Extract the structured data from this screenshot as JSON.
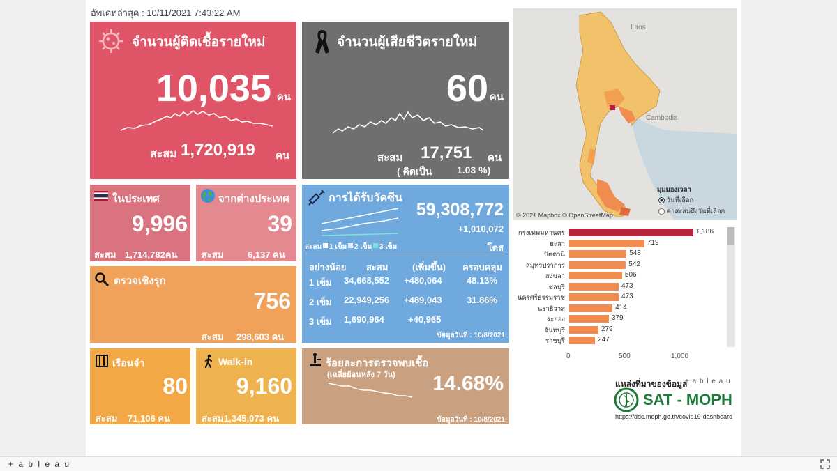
{
  "last_updated": "อัพเดทล่าสุด : 10/11/2021 7:43:22 AM",
  "new_cases": {
    "title": "จำนวนผู้ติดเชื้อรายใหม่",
    "value": "10,035",
    "unit": "คน",
    "cum_label": "สะสม",
    "cum_value": "1,720,919",
    "cum_unit": "คน"
  },
  "new_deaths": {
    "title": "จำนวนผู้เสียชีวิตรายใหม่",
    "value": "60",
    "unit": "คน",
    "cum_label": "สะสม",
    "cum_value": "17,751",
    "cum_unit": "คน",
    "pct_label": "( คิดเป็น",
    "pct_value": "1.03 %)"
  },
  "domestic": {
    "title": "ในประเทศ",
    "value": "9,996",
    "cum_label": "สะสม",
    "cum_value": "1,714,782คน"
  },
  "overseas": {
    "title": "จากต่างประเทศ",
    "value": "39",
    "cum_label": "สะสม",
    "cum_value": "6,137 คน"
  },
  "vaccine": {
    "title": "การได้รับวัคซีน",
    "total": "59,308,772",
    "increase": "+1,010,072",
    "unit": "โดส",
    "legend_prefix": "สะสม",
    "legend": [
      "1 เข็ม",
      "2 เข็ม",
      "3 เข็ม"
    ],
    "headers": [
      "อย่างน้อย",
      "สะสม",
      "(เพิ่มขึ้น)",
      "ครอบคลุม"
    ],
    "rows": [
      {
        "dose": "1 เข็ม",
        "cum": "34,668,552",
        "inc": "+480,064",
        "cov": "48.13%"
      },
      {
        "dose": "2 เข็ม",
        "cum": "22,949,256",
        "inc": "+489,043",
        "cov": "31.86%"
      },
      {
        "dose": "3 เข็ม",
        "cum": "1,690,964",
        "inc": "+40,965",
        "cov": ""
      }
    ],
    "data_date": "ข้อมูลวันที่ : 10/8/2021"
  },
  "active_case": {
    "title": "ตรวจเชิงรุก",
    "value": "756",
    "cum_label": "สะสม",
    "cum_value": "298,603 คน"
  },
  "prison": {
    "title": "เรือนจำ",
    "value": "80",
    "cum_label": "สะสม",
    "cum_value": "71,106 คน"
  },
  "walkin": {
    "title": "Walk-in",
    "value": "9,160",
    "cum_label": "สะสม",
    "cum_value": "1,345,073 คน"
  },
  "positivity": {
    "title": "ร้อยละการตรวจพบเชื้อ",
    "subtitle": "(เฉลี่ยย้อนหลัง 7 วัน)",
    "value": "14.68%",
    "data_date": "ข้อมูลวันที่ : 10/8/2021"
  },
  "map": {
    "labels": {
      "laos": "Laos",
      "cambodia": "Cambodia"
    },
    "attribution": "© 2021 Mapbox  © OpenStreetMap",
    "time_title": "มุมมองเวลา",
    "time_options": [
      "วันที่เลือก",
      "ค่าสะสมถึงวันที่เลือก"
    ],
    "selected_option": "วันที่เลือก"
  },
  "chart_data": {
    "type": "bar",
    "categories": [
      "กรุงเทพมหานคร",
      "ยะลา",
      "ปัตตานี",
      "สมุทรปราการ",
      "สงขลา",
      "ชลบุรี",
      "นครศรีธรรมราช",
      "นราธิวาส",
      "ระยอง",
      "จันทบุรี",
      "ราชบุรี"
    ],
    "values": [
      1186,
      719,
      548,
      542,
      506,
      473,
      473,
      414,
      379,
      279,
      247
    ],
    "value_labels": [
      "1,186",
      "719",
      "548",
      "542",
      "506",
      "473",
      "473",
      "414",
      "379",
      "279",
      "247"
    ],
    "xlim": [
      0,
      1400
    ],
    "ticks": [
      0,
      500,
      1000
    ],
    "tick_labels": [
      "0",
      "500",
      "1,000"
    ],
    "colors": {
      "top": "#b5243a",
      "rest": "#f08c50"
    }
  },
  "source": {
    "label": "แหล่งที่มาของข้อมูล",
    "tableau": "+ a b l e a u",
    "brand": "SAT - MOPH",
    "url": "https://ddc.moph.go.th/covid19-dashboard"
  },
  "toolbar": {
    "logo": "+ a b l e a u"
  }
}
